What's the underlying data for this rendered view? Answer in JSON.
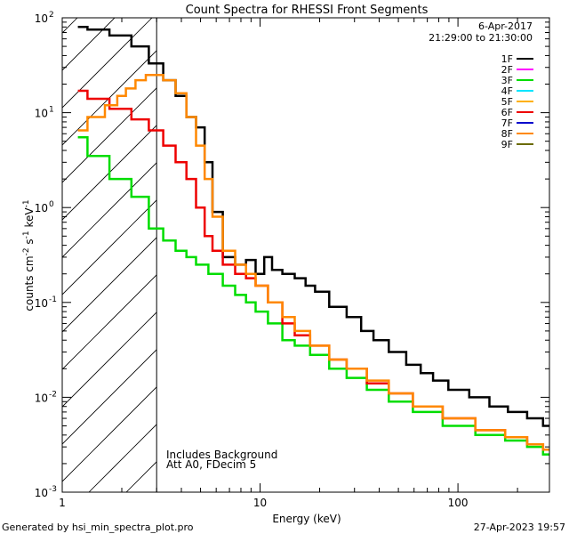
{
  "chart_data": {
    "type": "line",
    "title": "Count Spectra for RHESSI Front Segments",
    "xlabel": "Energy (keV)",
    "ylabel_parts": {
      "base": "counts cm",
      "e1": "-2",
      "s": " s",
      "e2": "-1",
      "kev": " keV",
      "e3": "-1"
    },
    "x_scale": "log",
    "y_scale": "log",
    "xlim": [
      1.0,
      290.0
    ],
    "ylim": [
      0.001,
      100
    ],
    "x_ticks": [
      {
        "v": 1,
        "label": "1"
      },
      {
        "v": 10,
        "label": "10"
      },
      {
        "v": 100,
        "label": "100"
      }
    ],
    "y_ticks": [
      {
        "v": 0.001,
        "base": "10",
        "exp": "-3"
      },
      {
        "v": 0.01,
        "base": "10",
        "exp": "-2"
      },
      {
        "v": 0.1,
        "base": "10",
        "exp": "-1"
      },
      {
        "v": 1,
        "base": "10",
        "exp": "0"
      },
      {
        "v": 10,
        "base": "10",
        "exp": "1"
      },
      {
        "v": 100,
        "base": "10",
        "exp": "2"
      }
    ],
    "hatched_region_max_keV": 3.0,
    "date": "6-Apr-2017",
    "time_range": "21:29:00 to 21:30:00",
    "legend": [
      {
        "name": "1F",
        "color": "#000000"
      },
      {
        "name": "2F",
        "color": "#ff00ff"
      },
      {
        "name": "3F",
        "color": "#00dd00"
      },
      {
        "name": "4F",
        "color": "#00e5ff"
      },
      {
        "name": "5F",
        "color": "#ffb000"
      },
      {
        "name": "6F",
        "color": "#ee0000"
      },
      {
        "name": "7F",
        "color": "#0000cc"
      },
      {
        "name": "8F",
        "color": "#ff8800"
      },
      {
        "name": "9F",
        "color": "#6b6b00"
      }
    ],
    "notes": [
      "Includes Background",
      "Att A0, FDecim 5"
    ],
    "series": [
      {
        "name": "1F",
        "color": "#000000",
        "x": [
          1.2,
          1.5,
          2.0,
          2.5,
          3.0,
          3.5,
          4.0,
          4.5,
          5.0,
          5.5,
          6.0,
          7.0,
          8.0,
          9.0,
          10.0,
          11.0,
          12.0,
          14.0,
          16.0,
          18.0,
          20.0,
          25.0,
          30.0,
          35.0,
          40.0,
          50.0,
          60.0,
          70.0,
          80.0,
          100.0,
          130.0,
          160.0,
          200.0,
          250.0,
          290.0
        ],
        "y": [
          80,
          75,
          65,
          50,
          33,
          22,
          15,
          9,
          7,
          3,
          0.9,
          0.3,
          0.25,
          0.28,
          0.2,
          0.3,
          0.22,
          0.2,
          0.18,
          0.15,
          0.13,
          0.09,
          0.07,
          0.05,
          0.04,
          0.03,
          0.022,
          0.018,
          0.015,
          0.012,
          0.01,
          0.008,
          0.007,
          0.006,
          0.005
        ]
      },
      {
        "name": "3F",
        "color": "#00dd00",
        "x": [
          1.2,
          1.5,
          2.0,
          2.5,
          3.0,
          3.5,
          4.0,
          4.5,
          5.0,
          6.0,
          7.0,
          8.0,
          9.0,
          10.0,
          12.0,
          14.0,
          16.0,
          20.0,
          25.0,
          30.0,
          40.0,
          50.0,
          70.0,
          100.0,
          150.0,
          200.0,
          250.0,
          290.0
        ],
        "y": [
          5.5,
          3.5,
          2.0,
          1.3,
          0.6,
          0.45,
          0.35,
          0.3,
          0.25,
          0.2,
          0.15,
          0.12,
          0.1,
          0.08,
          0.06,
          0.04,
          0.035,
          0.028,
          0.02,
          0.016,
          0.012,
          0.009,
          0.007,
          0.005,
          0.004,
          0.0035,
          0.003,
          0.0025
        ]
      },
      {
        "name": "6F",
        "color": "#ee0000",
        "x": [
          1.2,
          1.5,
          2.0,
          2.5,
          3.0,
          3.5,
          4.0,
          4.5,
          5.0,
          5.5,
          6.0,
          7.0,
          8.0,
          9.0,
          10.0,
          12.0,
          14.0,
          16.0,
          20.0,
          25.0,
          30.0,
          40.0,
          50.0,
          70.0,
          100.0,
          150.0,
          200.0,
          250.0,
          290.0
        ],
        "y": [
          17,
          14,
          11,
          8.5,
          6.5,
          4.5,
          3.0,
          2.0,
          1.0,
          0.5,
          0.35,
          0.25,
          0.2,
          0.18,
          0.15,
          0.1,
          0.06,
          0.045,
          0.035,
          0.025,
          0.02,
          0.014,
          0.011,
          0.008,
          0.006,
          0.0045,
          0.0038,
          0.0032,
          0.0028
        ]
      },
      {
        "name": "8F",
        "color": "#ff8800",
        "x": [
          1.2,
          1.5,
          1.8,
          2.0,
          2.2,
          2.5,
          2.8,
          3.0,
          3.5,
          4.0,
          4.5,
          5.0,
          5.5,
          6.0,
          7.0,
          8.0,
          9.0,
          10.0,
          12.0,
          14.0,
          16.0,
          20.0,
          25.0,
          30.0,
          40.0,
          50.0,
          70.0,
          100.0,
          150.0,
          200.0,
          250.0,
          290.0
        ],
        "y": [
          6.5,
          9.0,
          12.0,
          15.0,
          18.0,
          22.0,
          25.0,
          25.0,
          22.0,
          16.0,
          9.0,
          4.5,
          2.0,
          0.8,
          0.35,
          0.25,
          0.2,
          0.15,
          0.1,
          0.07,
          0.05,
          0.035,
          0.025,
          0.02,
          0.015,
          0.011,
          0.008,
          0.006,
          0.0045,
          0.0038,
          0.0032,
          0.0028
        ]
      }
    ]
  },
  "footer": {
    "generated_by": "Generated by hsi_min_spectra_plot.pro",
    "timestamp": "27-Apr-2023 19:57"
  }
}
